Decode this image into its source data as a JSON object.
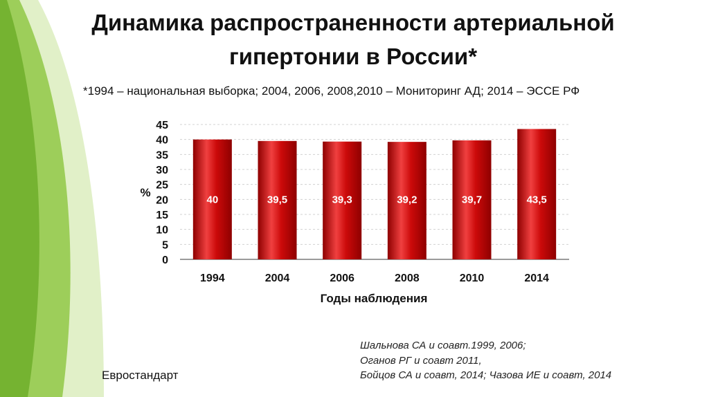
{
  "slide": {
    "title_line1": "Динамика распространенности артериальной",
    "title_line2": "гипертонии в России*",
    "subtitle": "*1994 – национальная выборка; 2004, 2006, 2008,2010 – Мониторинг АД; 2014 – ЭССЕ РФ",
    "references": [
      "Шальнова СА и соавт.1999, 2006;",
      "Оганов РГ и соавт 2011,",
      "Бойцов СА и соавт, 2014; Чазова ИЕ и соавт,  2014"
    ],
    "footer_label": "Евростандарт"
  },
  "colors": {
    "bar": "#cc0a0a",
    "bar_dark": "#8e0000",
    "bar_light": "#f04040",
    "decor_green": "#8cc63f",
    "decor_light_green": "#c9e39a"
  },
  "chart_data": {
    "type": "bar",
    "categories": [
      "1994",
      "2004",
      "2006",
      "2008",
      "2010",
      "2014"
    ],
    "values": [
      40,
      39.5,
      39.3,
      39.2,
      39.7,
      43.5
    ],
    "value_labels": [
      "40",
      "39,5",
      "39,3",
      "39,2",
      "39,7",
      "43,5"
    ],
    "xlabel": "Годы наблюдения",
    "ylabel": "%",
    "ylim": [
      0,
      45
    ],
    "yticks": [
      0,
      5,
      10,
      15,
      20,
      25,
      30,
      35,
      40,
      45
    ],
    "grid": true,
    "legend": "none"
  }
}
